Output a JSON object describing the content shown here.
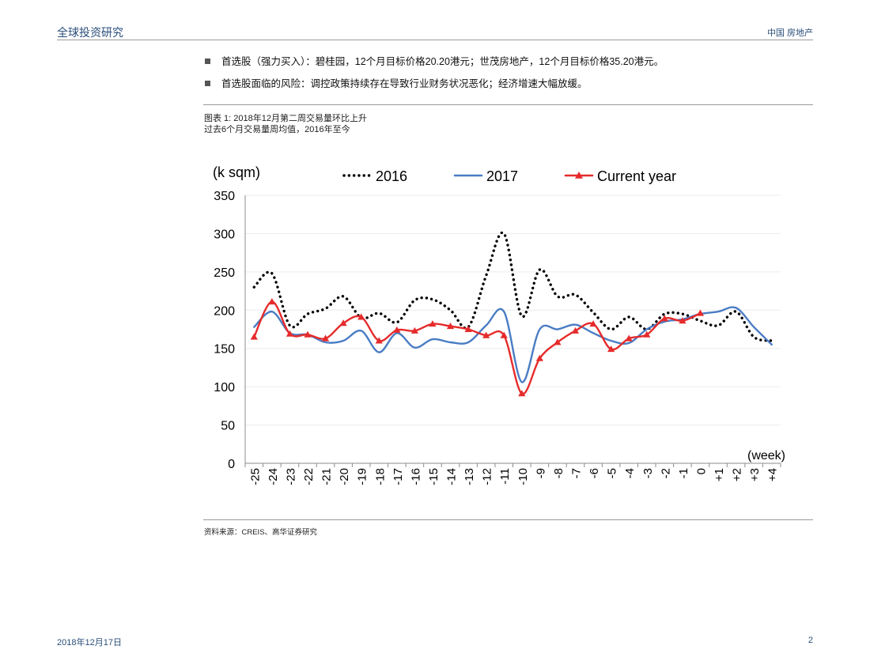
{
  "header": {
    "left": "全球投资研究",
    "right": "中国 房地产"
  },
  "bullets": [
    "首选股（强力买入）：碧桂园，12个月目标价格20.20港元；世茂房地产，12个月目标价格35.20港元。",
    "首选股面临的风险：调控政策持续存在导致行业财务状况恶化；经济增速大幅放缓。"
  ],
  "figure": {
    "title": "图表 1: 2018年12月第二周交易量环比上升",
    "subtitle": "过去6个月交易量周均值，2016年至今"
  },
  "source": "资料来源：CREIS、高华证券研究",
  "footer": {
    "date": "2018年12月17日",
    "page": "2"
  },
  "chart_data": {
    "type": "line",
    "ylabel": "(k sqm)",
    "xlabel": "(week)",
    "ylim": [
      0,
      350
    ],
    "yticks": [
      0,
      50,
      100,
      150,
      200,
      250,
      300,
      350
    ],
    "grid": true,
    "legend_position": "top",
    "categories": [
      "-25",
      "-24",
      "-23",
      "-22",
      "-21",
      "-20",
      "-19",
      "-18",
      "-17",
      "-16",
      "-15",
      "-14",
      "-13",
      "-12",
      "-11",
      "-10",
      "-9",
      "-8",
      "-7",
      "-6",
      "-5",
      "-4",
      "-3",
      "-2",
      "-1",
      "0",
      "+1",
      "+2",
      "+3",
      "+4"
    ],
    "series": [
      {
        "name": "2016",
        "color": "#000000",
        "style": "dotted",
        "values": [
          230,
          248,
          180,
          195,
          202,
          218,
          190,
          196,
          184,
          213,
          214,
          200,
          178,
          245,
          300,
          192,
          253,
          218,
          220,
          197,
          175,
          191,
          175,
          195,
          195,
          186,
          180,
          198,
          165,
          160
        ]
      },
      {
        "name": "2017",
        "color": "#4a7cc4",
        "style": "solid",
        "values": [
          178,
          198,
          170,
          168,
          158,
          160,
          173,
          145,
          170,
          151,
          162,
          158,
          158,
          180,
          198,
          106,
          175,
          175,
          181,
          170,
          160,
          157,
          175,
          185,
          188,
          195,
          198,
          203,
          178,
          155
        ]
      },
      {
        "name": "Current year",
        "color": "#e62b2b",
        "style": "solid-triangle",
        "marker_skip": [
          27
        ],
        "values": [
          165,
          211,
          169,
          168,
          163,
          183,
          191,
          160,
          174,
          173,
          182,
          179,
          175,
          167,
          167,
          91,
          137,
          158,
          173,
          182,
          149,
          163,
          168,
          189,
          186,
          196,
          null,
          null,
          null,
          null
        ]
      }
    ]
  }
}
